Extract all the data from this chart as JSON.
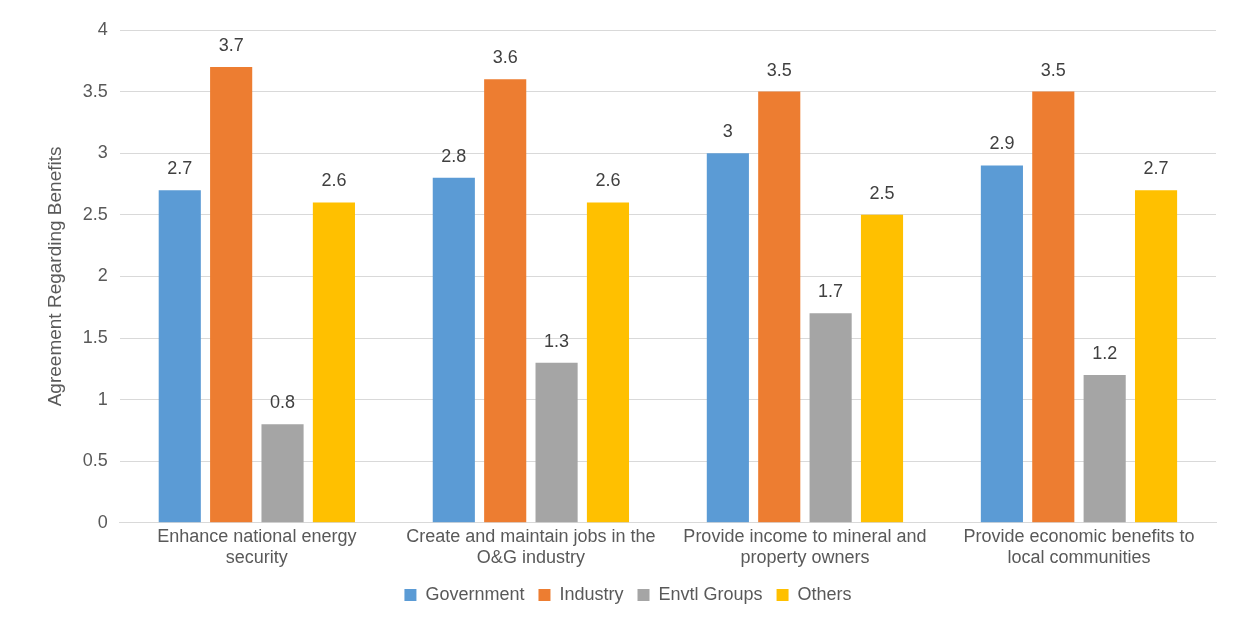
{
  "chart_data": {
    "type": "bar",
    "ylabel": "Agreement Regarding Benefits",
    "categories": [
      "Enhance national energy security",
      "Create and maintain jobs in the O&G industry",
      "Provide income to mineral and property owners",
      "Provide economic benefits to local communities"
    ],
    "series": [
      {
        "name": "Government",
        "color": "#5b9bd5",
        "values": [
          2.7,
          2.8,
          3,
          2.9
        ]
      },
      {
        "name": "Industry",
        "color": "#ed7d31",
        "values": [
          3.7,
          3.6,
          3.5,
          3.5
        ]
      },
      {
        "name": "Envtl Groups",
        "color": "#a5a5a5",
        "values": [
          0.8,
          1.3,
          1.7,
          1.2
        ]
      },
      {
        "name": "Others",
        "color": "#ffc000",
        "values": [
          2.6,
          2.6,
          2.5,
          2.7
        ]
      }
    ],
    "ylim": [
      0,
      4
    ],
    "yticks": [
      0,
      0.5,
      1,
      1.5,
      2,
      2.5,
      3,
      3.5,
      4
    ],
    "grid": "y",
    "legend": "bottom",
    "data_labels": true
  }
}
